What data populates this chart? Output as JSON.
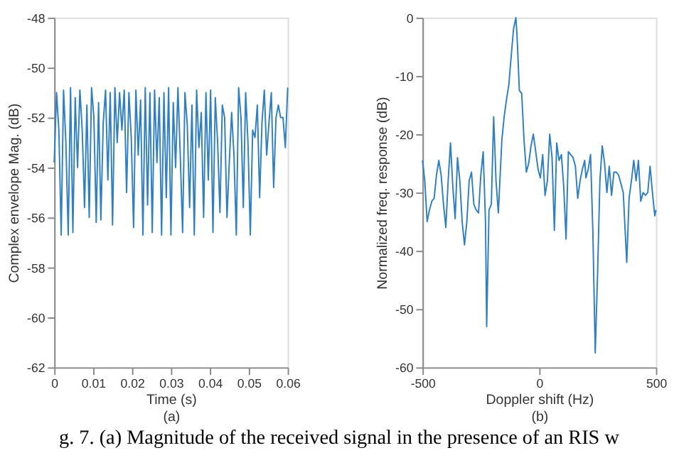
{
  "chart_data": [
    {
      "type": "line",
      "xlabel": "Time (s)",
      "ylabel": "Complex envelope Mag. (dB)",
      "annotations": [
        "(a)",
        "g. 7. (a) Magnitude of the received signal in the presence of an RIS w"
      ],
      "x": [
        0,
        0.0006,
        0.0012,
        0.0018,
        0.0024,
        0.003,
        0.0036,
        0.0042,
        0.0048,
        0.0054,
        0.006,
        0.0066,
        0.0072,
        0.0078,
        0.0084,
        0.009,
        0.0096,
        0.0102,
        0.0108,
        0.0114,
        0.012,
        0.0126,
        0.0132,
        0.0138,
        0.0144,
        0.015,
        0.0156,
        0.0162,
        0.0168,
        0.0174,
        0.018,
        0.0186,
        0.0192,
        0.0198,
        0.0204,
        0.021,
        0.0216,
        0.0222,
        0.0228,
        0.0234,
        0.024,
        0.0246,
        0.0252,
        0.0258,
        0.0264,
        0.027,
        0.0276,
        0.0282,
        0.0288,
        0.0294,
        0.03,
        0.0306,
        0.0312,
        0.0318,
        0.0324,
        0.033,
        0.0336,
        0.0342,
        0.0348,
        0.0354,
        0.036,
        0.0366,
        0.0372,
        0.0378,
        0.0384,
        0.039,
        0.0396,
        0.0402,
        0.0408,
        0.0414,
        0.042,
        0.0426,
        0.0432,
        0.0438,
        0.0444,
        0.045,
        0.0456,
        0.0462,
        0.0468,
        0.0474,
        0.048,
        0.0486,
        0.0492,
        0.0498,
        0.0504,
        0.051,
        0.0516,
        0.0522,
        0.0528,
        0.0534,
        0.054,
        0.0546,
        0.0552,
        0.0558,
        0.0564,
        0.057,
        0.0576,
        0.0582,
        0.0588,
        0.0594,
        0.06
      ],
      "series": [
        {
          "color": "#2f7fc1",
          "values": [
            -53.8,
            -51,
            -52.5,
            -56.7,
            -50.9,
            -53,
            -56.7,
            -50.8,
            -56.6,
            -51.2,
            -54,
            -50.9,
            -52.5,
            -55.6,
            -51.5,
            -56,
            -50.8,
            -52,
            -56.2,
            -51.4,
            -56.1,
            -52.2,
            -50.9,
            -54.5,
            -51,
            -56.3,
            -50.8,
            -53,
            -51,
            -52.5,
            -50.9,
            -55,
            -51,
            -52.8,
            -56.4,
            -50.9,
            -53.5,
            -51.3,
            -56.7,
            -50.8,
            -55.5,
            -51,
            -56.6,
            -50.9,
            -53.8,
            -51.2,
            -56.7,
            -51,
            -55.2,
            -50.8,
            -56.7,
            -51.4,
            -54,
            -50.8,
            -53.5,
            -56.6,
            -51,
            -52.3,
            -55.6,
            -51.5,
            -56.7,
            -50.9,
            -53.2,
            -51.8,
            -56,
            -51,
            -54.5,
            -50.9,
            -56.6,
            -51.2,
            -53,
            -55.8,
            -51.5,
            -52,
            -56,
            -53.8,
            -51.8,
            -53.5,
            -56.7,
            -50.8,
            -52,
            -55.6,
            -51,
            -53,
            -56.7,
            -52.5,
            -52.8,
            -51.5,
            -55.2,
            -52.2,
            -50.9,
            -53.5,
            -52.2,
            -51,
            -54.8,
            -52,
            -51.5,
            -52,
            -52,
            -53.2,
            -50.8
          ]
        }
      ],
      "xlim": [
        0,
        0.06
      ],
      "xticks": [
        0,
        0.01,
        0.02,
        0.03,
        0.04,
        0.05,
        0.06
      ],
      "ylim": [
        -62,
        -48
      ],
      "yticks": [
        -62,
        -60,
        -58,
        -56,
        -54,
        -52,
        -50,
        -48
      ],
      "grid": false,
      "line_style": "solid",
      "marker": "none"
    },
    {
      "type": "line",
      "xlabel": "Doppler shift (Hz)",
      "ylabel": "Normalized freq. response (dB)",
      "annotations": [
        "(b)"
      ],
      "x": [
        -500,
        -490,
        -480,
        -470,
        -460,
        -450,
        -440,
        -430,
        -420,
        -410,
        -400,
        -390,
        -380,
        -370,
        -360,
        -350,
        -340,
        -330,
        -320,
        -310,
        -300,
        -290,
        -280,
        -270,
        -260,
        -250,
        -240,
        -230,
        -225,
        -215,
        -205,
        -195,
        -185,
        -175,
        -160,
        -150,
        -140,
        -130,
        -125,
        -110,
        -100,
        -95,
        -85,
        -75,
        -65,
        -55,
        -45,
        -35,
        -25,
        -15,
        -5,
        5,
        15,
        25,
        35,
        45,
        55,
        65,
        75,
        85,
        95,
        105,
        115,
        125,
        135,
        145,
        155,
        165,
        175,
        185,
        195,
        200,
        210,
        220,
        230,
        240,
        250,
        260,
        270,
        280,
        290,
        300,
        310,
        320,
        330,
        340,
        350,
        360,
        375,
        385,
        395,
        405,
        415,
        425,
        435,
        445,
        455,
        465,
        475,
        485,
        495,
        500
      ],
      "series": [
        {
          "color": "#2f7fc1",
          "values": [
            -24.5,
            -28,
            -35,
            -33,
            -31.5,
            -31,
            -27,
            -24.5,
            -27,
            -32,
            -36,
            -28,
            -21.5,
            -29,
            -34.5,
            -24,
            -28,
            -35,
            -39,
            -35,
            -28,
            -26.5,
            -32,
            -33,
            -33.5,
            -27,
            -23,
            -35,
            -53,
            -33,
            -32,
            -17,
            -28,
            -33.5,
            -21,
            -17,
            -14,
            -11.5,
            -9,
            -2,
            0,
            -3,
            -12.5,
            -13,
            -21,
            -26.5,
            -25,
            -22,
            -20,
            -23,
            -26,
            -27.5,
            -23.5,
            -30.5,
            -28,
            -20,
            -24,
            -36.5,
            -21.5,
            -24.5,
            -23.5,
            -29,
            -38,
            -23,
            -23.5,
            -24,
            -25.5,
            -31,
            -28,
            -26,
            -24.5,
            -27.5,
            -26,
            -23.5,
            -37,
            -57.5,
            -44,
            -28,
            -22,
            -25,
            -30,
            -25.5,
            -30.5,
            -26.5,
            -26.5,
            -27,
            -28.5,
            -30,
            -42,
            -31,
            -28,
            -24.5,
            -28,
            -24.5,
            -31.5,
            -30,
            -30.5,
            -30,
            -25.5,
            -30,
            -34,
            -33
          ]
        }
      ],
      "xlim": [
        -500,
        500
      ],
      "xticks": [
        -500,
        0,
        500
      ],
      "ylim": [
        -60,
        0
      ],
      "yticks": [
        -60,
        -50,
        -40,
        -30,
        -20,
        -10,
        0
      ],
      "grid": false,
      "line_style": "solid",
      "marker": "none"
    }
  ]
}
